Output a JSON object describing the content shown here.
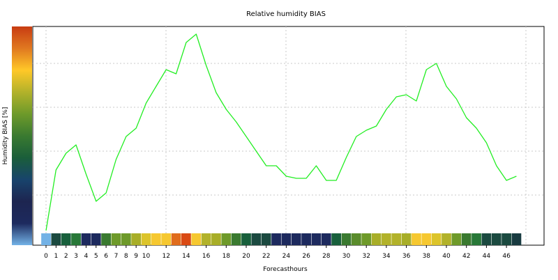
{
  "chart_data": {
    "type": "line",
    "title": "Relative humidity BIAS",
    "xlabel": "Forecasthours",
    "ylabel": "Humidity BIAS [%]",
    "xlim": [
      -1,
      49
    ],
    "ylim": [
      0,
      1
    ],
    "x_ticks": [
      0,
      1,
      2,
      3,
      4,
      5,
      6,
      7,
      8,
      9,
      10,
      12,
      14,
      16,
      18,
      20,
      22,
      24,
      26,
      28,
      30,
      32,
      34,
      36,
      38,
      40,
      42,
      44,
      46
    ],
    "y_ticks_labeled": false,
    "grid": true,
    "line_color": "#22ee22",
    "series": [
      {
        "x": [
          0,
          1,
          2,
          3,
          4,
          5,
          6,
          7,
          8,
          9,
          10,
          11,
          12,
          13,
          14,
          15,
          16,
          17,
          18,
          19,
          20,
          21,
          22,
          23,
          24,
          25,
          26,
          27,
          28,
          29,
          30,
          31,
          32,
          33,
          34,
          35,
          36,
          37,
          38,
          39,
          40,
          41,
          42,
          43,
          44,
          45,
          46,
          47
        ],
        "values": [
          0.03,
          0.32,
          0.4,
          0.44,
          0.3,
          0.17,
          0.21,
          0.37,
          0.48,
          0.52,
          0.64,
          0.72,
          0.8,
          0.78,
          0.93,
          0.97,
          0.82,
          0.69,
          0.61,
          0.55,
          0.48,
          0.41,
          0.34,
          0.34,
          0.29,
          0.28,
          0.28,
          0.34,
          0.27,
          0.27,
          0.38,
          0.48,
          0.51,
          0.53,
          0.61,
          0.67,
          0.68,
          0.65,
          0.8,
          0.83,
          0.72,
          0.66,
          0.57,
          0.52,
          0.45,
          0.34,
          0.27,
          0.29
        ]
      }
    ],
    "colorbar": {
      "colors_bottom_to_top": [
        "#73b2e6",
        "#1d2a5e",
        "#1d2550",
        "#18446c",
        "#1a5e3a",
        "#3a7a30",
        "#6e9a2a",
        "#b2b22a",
        "#ffc828",
        "#e07820",
        "#c83c12"
      ]
    },
    "hour_strip": [
      "#73b2e6",
      "#1b4a40",
      "#18603c",
      "#287838",
      "#1d2a5e",
      "#1d2a5e",
      "#3a7a30",
      "#6e9a2a",
      "#6e9a2a",
      "#a8ae28",
      "#dcc42a",
      "#f6c830",
      "#f6c830",
      "#e06c1c",
      "#da4a14",
      "#f6c830",
      "#b2b22a",
      "#a8ae28",
      "#6e9a2a",
      "#3a7a30",
      "#18603c",
      "#1b4a40",
      "#1b4a40",
      "#1d2a5e",
      "#1d2a5e",
      "#1d2a5e",
      "#1d2a5e",
      "#1d2a5e",
      "#1d2a5e",
      "#18603c",
      "#3a7a30",
      "#5a8c2c",
      "#6e9a2a",
      "#a8ae28",
      "#b2b22a",
      "#b2b22a",
      "#a8ae28",
      "#f6c830",
      "#f6c830",
      "#dcc42a",
      "#b2b22a",
      "#6e9a2a",
      "#3a7a30",
      "#287838",
      "#1b4a40",
      "#1b4a40",
      "#1b4a40",
      "#183a40"
    ]
  }
}
